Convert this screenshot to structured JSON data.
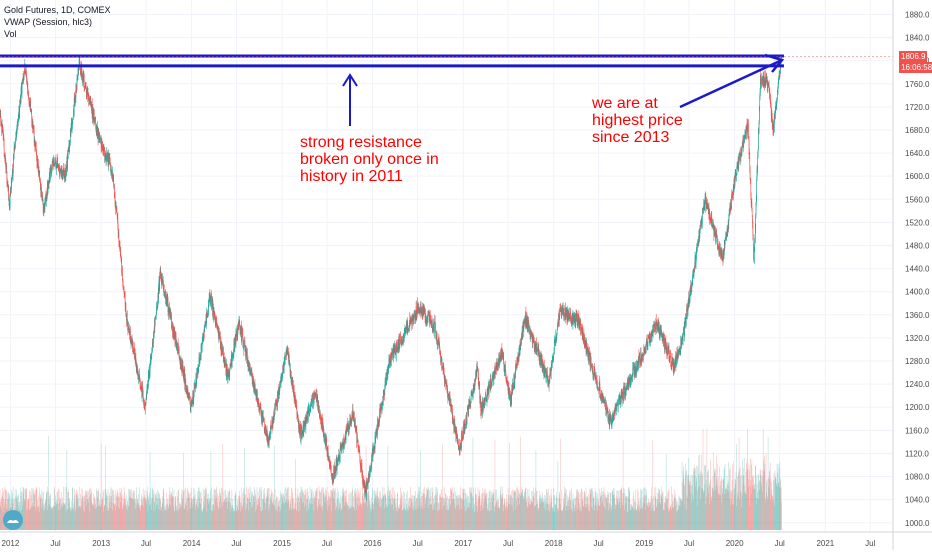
{
  "header": {
    "symbol_line": "Gold Futures, 1D, COMEX",
    "vwap_line": "VWAP (Session, hlc3)",
    "vol_line": "Vol"
  },
  "price_tags": {
    "last_price": "1806.9",
    "countdown": "16:06:58"
  },
  "annotations": {
    "resistance": [
      "strong resistance",
      "broken only once in",
      "history in 2011"
    ],
    "highest": [
      "we are at",
      "highest price",
      "since 2013"
    ]
  },
  "colors": {
    "up": "#26a69a",
    "down": "#ef5350",
    "line": "#1a1acc",
    "annotation": "#ff0000",
    "axis_text": "#4a4a4a"
  },
  "icons": {
    "logo": "tradingview-logo-icon"
  },
  "chart_data": {
    "type": "candlestick",
    "y_axis": {
      "min": 984,
      "max": 1905,
      "ticks": [
        1000,
        1040,
        1080,
        1120,
        1160,
        1200,
        1240,
        1280,
        1320,
        1360,
        1400,
        1440,
        1480,
        1520,
        1560,
        1600,
        1640,
        1680,
        1720,
        1760,
        1800,
        1840,
        1880
      ],
      "tick_labels": [
        "1000.0",
        "1040.0",
        "1080.0",
        "1120.0",
        "1160.0",
        "1200.0",
        "1240.0",
        "1280.0",
        "1320.0",
        "1360.0",
        "1400.0",
        "1440.0",
        "1480.0",
        "1520.0",
        "1560.0",
        "1600.0",
        "1640.0",
        "1680.0",
        "1720.0",
        "1760.0",
        "1800.0",
        "1840.0",
        "1880.0"
      ]
    },
    "x_axis": {
      "range": [
        "2011-11-20",
        "2021-10-01"
      ],
      "ticks": [
        {
          "date": "2012-01-01",
          "label": "2012"
        },
        {
          "date": "2012-07-01",
          "label": "Jul"
        },
        {
          "date": "2013-01-01",
          "label": "2013"
        },
        {
          "date": "2013-07-01",
          "label": "Jul"
        },
        {
          "date": "2014-01-01",
          "label": "2014"
        },
        {
          "date": "2014-07-01",
          "label": "Jul"
        },
        {
          "date": "2015-01-01",
          "label": "2015"
        },
        {
          "date": "2015-07-01",
          "label": "Jul"
        },
        {
          "date": "2016-01-01",
          "label": "2016"
        },
        {
          "date": "2016-07-01",
          "label": "Jul"
        },
        {
          "date": "2017-01-01",
          "label": "2017"
        },
        {
          "date": "2017-07-01",
          "label": "Jul"
        },
        {
          "date": "2018-01-01",
          "label": "2018"
        },
        {
          "date": "2018-07-01",
          "label": "Jul"
        },
        {
          "date": "2019-01-01",
          "label": "2019"
        },
        {
          "date": "2019-07-01",
          "label": "Jul"
        },
        {
          "date": "2020-01-01",
          "label": "2020"
        },
        {
          "date": "2020-07-01",
          "label": "Jul"
        },
        {
          "date": "2021-01-01",
          "label": "2021"
        },
        {
          "date": "2021-07-01",
          "label": "Jul"
        }
      ]
    },
    "price_path": [
      [
        "2011-11-20",
        1715
      ],
      [
        "2011-12-29",
        1550
      ],
      [
        "2012-01-20",
        1660
      ],
      [
        "2012-02-28",
        1790
      ],
      [
        "2012-05-15",
        1540
      ],
      [
        "2012-06-20",
        1630
      ],
      [
        "2012-08-10",
        1600
      ],
      [
        "2012-10-04",
        1795
      ],
      [
        "2012-12-28",
        1660
      ],
      [
        "2013-02-15",
        1610
      ],
      [
        "2013-04-15",
        1350
      ],
      [
        "2013-06-28",
        1200
      ],
      [
        "2013-08-28",
        1430
      ],
      [
        "2013-12-31",
        1200
      ],
      [
        "2014-03-17",
        1390
      ],
      [
        "2014-05-28",
        1250
      ],
      [
        "2014-07-10",
        1345
      ],
      [
        "2014-11-07",
        1140
      ],
      [
        "2015-01-22",
        1300
      ],
      [
        "2015-03-17",
        1150
      ],
      [
        "2015-05-15",
        1225
      ],
      [
        "2015-07-24",
        1080
      ],
      [
        "2015-10-14",
        1190
      ],
      [
        "2015-12-03",
        1050
      ],
      [
        "2016-03-10",
        1280
      ],
      [
        "2016-07-06",
        1375
      ],
      [
        "2016-09-08",
        1340
      ],
      [
        "2016-12-15",
        1125
      ],
      [
        "2017-02-27",
        1265
      ],
      [
        "2017-03-14",
        1195
      ],
      [
        "2017-06-06",
        1295
      ],
      [
        "2017-07-10",
        1210
      ],
      [
        "2017-09-08",
        1355
      ],
      [
        "2017-12-12",
        1240
      ],
      [
        "2018-01-25",
        1365
      ],
      [
        "2018-04-11",
        1350
      ],
      [
        "2018-05-21",
        1290
      ],
      [
        "2018-08-16",
        1175
      ],
      [
        "2018-10-26",
        1240
      ],
      [
        "2019-02-20",
        1345
      ],
      [
        "2019-05-02",
        1270
      ],
      [
        "2019-06-10",
        1330
      ],
      [
        "2019-09-04",
        1560
      ],
      [
        "2019-11-12",
        1455
      ],
      [
        "2020-01-08",
        1610
      ],
      [
        "2020-02-24",
        1690
      ],
      [
        "2020-03-19",
        1450
      ],
      [
        "2020-04-14",
        1770
      ],
      [
        "2020-05-15",
        1760
      ],
      [
        "2020-06-05",
        1680
      ],
      [
        "2020-07-08",
        1806.9
      ]
    ],
    "resistance_lines": [
      {
        "from": "2011-11-20",
        "to": "2020-07-18",
        "value": 1808
      },
      {
        "from": "2011-11-20",
        "to": "2020-07-18",
        "value": 1791
      }
    ],
    "last_price": 1806.9,
    "volume_axis_max": 290000
  }
}
